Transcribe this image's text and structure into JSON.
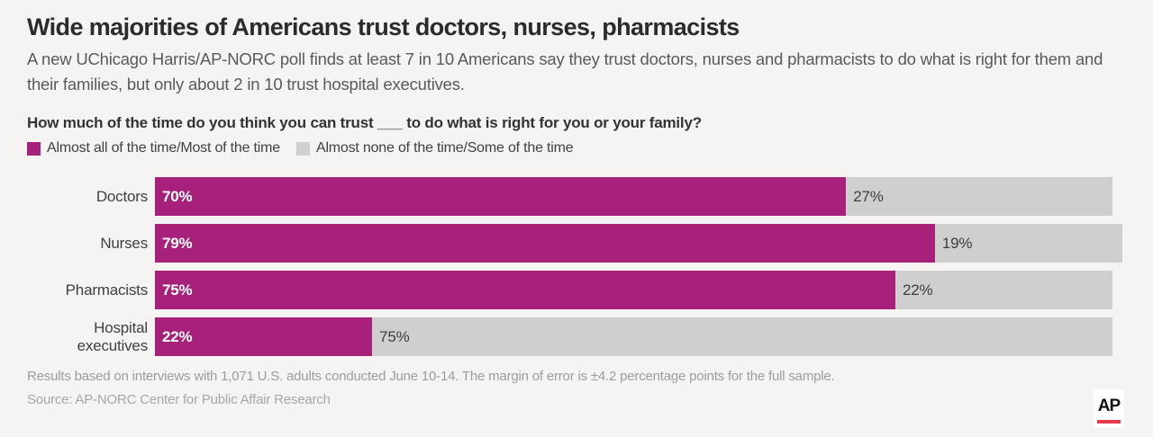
{
  "header": {
    "title": "Wide majorities of Americans trust doctors, nurses, pharmacists",
    "subtitle": "A new UChicago Harris/AP-NORC poll finds at least 7 in 10 Americans say they trust doctors, nurses and pharmacists to do what is right for them and their families, but only about 2 in 10 trust hospital executives.",
    "question": "How much of the time do you think you can trust ___ to do what is right for you or your family?"
  },
  "chart_data": {
    "type": "bar",
    "orientation": "horizontal",
    "stacked": true,
    "grid": false,
    "value_suffix": "%",
    "xlim": [
      0,
      100
    ],
    "categories": [
      "Doctors",
      "Nurses",
      "Pharmacists",
      "Hospital executives"
    ],
    "series": [
      {
        "name": "Almost all of the time/Most of the time",
        "color": "#a7217a",
        "values": [
          70,
          79,
          75,
          22
        ]
      },
      {
        "name": "Almost none of the time/Some of the time",
        "color": "#cfcfcf",
        "values": [
          27,
          19,
          22,
          75
        ]
      }
    ],
    "data_labels": {
      "primary": [
        "70%",
        "79%",
        "75%",
        "22%"
      ],
      "secondary": [
        "27%",
        "19%",
        "22%",
        "75%"
      ]
    },
    "legend_position": "top-left"
  },
  "footer": {
    "footnote": "Results based on interviews with 1,071 U.S. adults conducted June 10-14. The margin of error is ±4.2 percentage points for the full sample.",
    "source": "Source: AP-NORC Center for Public Affair Research"
  },
  "branding": {
    "logo_text": "AP",
    "logo_bar_color": "#e8394a",
    "logo_bg": "#ffffff"
  },
  "colors": {
    "background": "#f5f4f2",
    "primary_bar": "#a7217a",
    "secondary_bar": "#cfcfcf",
    "title_text": "#2b2b2b",
    "subtitle_text": "#5a5a5a",
    "footnote_text": "#9d9d9d"
  }
}
